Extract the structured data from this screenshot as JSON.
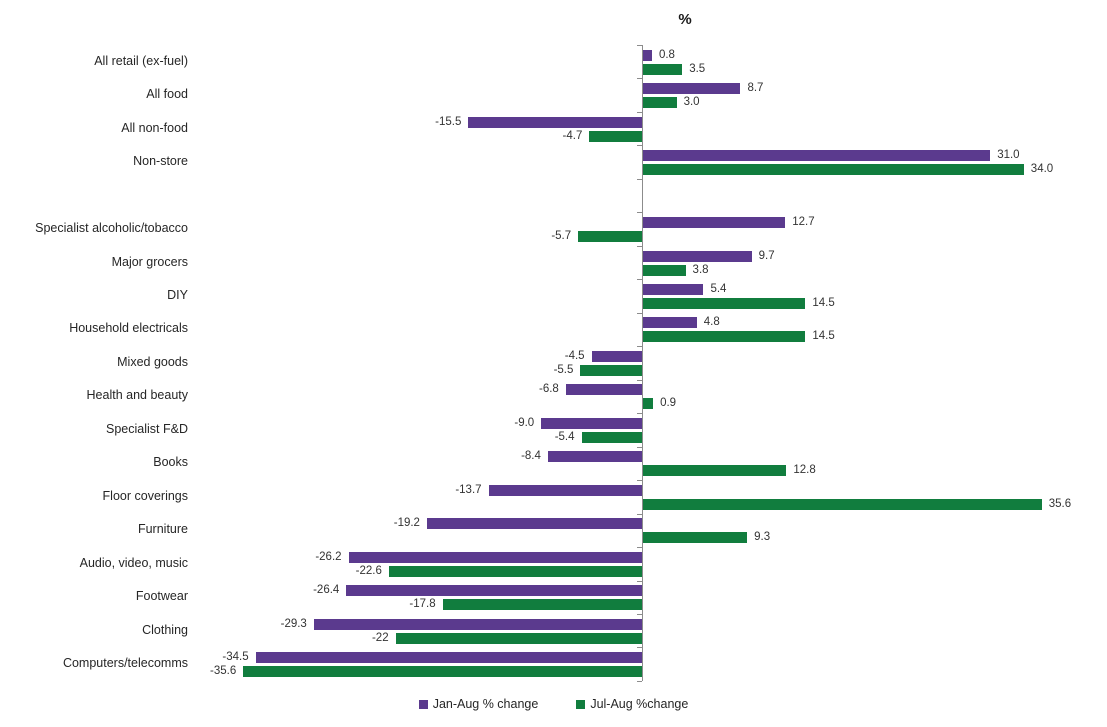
{
  "chart_data": {
    "type": "bar",
    "orientation": "horizontal",
    "title": "%",
    "categories": [
      "All retail (ex-fuel)",
      "All food",
      "All non-food",
      "Non-store",
      "",
      "Specialist alcoholic/tobacco",
      "Major grocers",
      "DIY",
      "Household electricals",
      "Mixed goods",
      "Health and beauty",
      "Specialist F&D",
      "Books",
      "Floor coverings",
      "Furniture",
      "Audio, video, music",
      "Footwear",
      "Clothing",
      "Computers/telecomms"
    ],
    "series": [
      {
        "name": "Jan-Aug % change",
        "color": "#5b3a8e",
        "values": [
          0.8,
          8.7,
          -15.5,
          31.0,
          null,
          12.7,
          9.7,
          5.4,
          4.8,
          -4.5,
          -6.8,
          -9.0,
          -8.4,
          -13.7,
          -19.2,
          -26.2,
          -26.4,
          -29.3,
          -34.5
        ],
        "labels": [
          "0.8",
          "8.7",
          "-15.5",
          "31.0",
          null,
          "12.7",
          "9.7",
          "5.4",
          "4.8",
          "-4.5",
          "-6.8",
          "-9.0",
          "-8.4",
          "-13.7",
          "-19.2",
          "-26.2",
          "-26.4",
          "-29.3",
          "-34.5"
        ]
      },
      {
        "name": "Jul-Aug %change",
        "color": "#117d3e",
        "values": [
          3.5,
          3.0,
          -4.7,
          34.0,
          null,
          -5.7,
          3.8,
          14.5,
          14.5,
          -5.5,
          0.9,
          -5.4,
          12.8,
          35.6,
          9.3,
          -22.6,
          -17.8,
          -22,
          -35.6
        ],
        "labels": [
          "3.5",
          "3.0",
          "-4.7",
          "34.0",
          null,
          "-5.7",
          "3.8",
          "14.5",
          "14.5",
          "-5.5",
          "0.9",
          "-5.4",
          "12.8",
          "35.6",
          "9.3",
          "-22.6",
          "-17.8",
          "-22",
          "-35.6"
        ]
      }
    ],
    "xlim": [
      -40,
      42
    ],
    "grid": false,
    "axis_color": "#8c8c8c",
    "legend_position": "bottom"
  }
}
